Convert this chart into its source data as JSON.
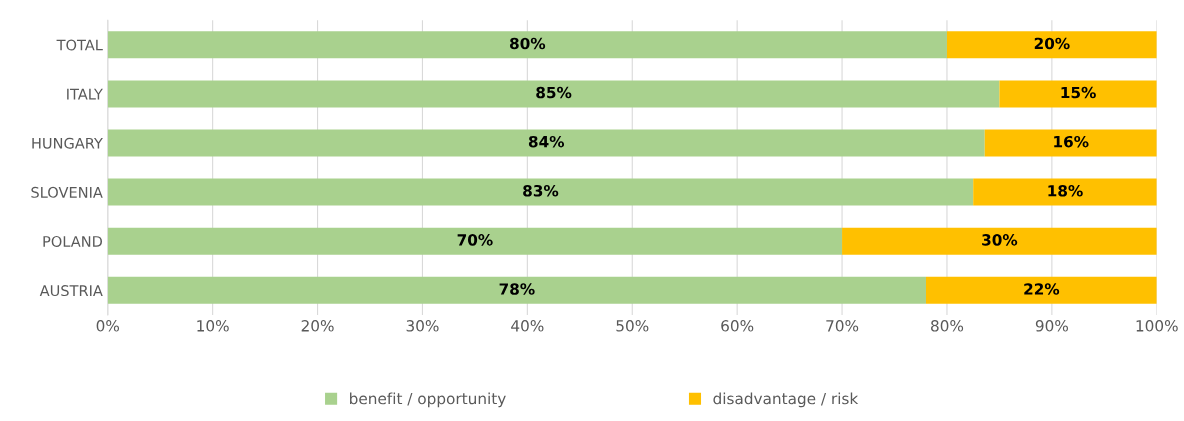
{
  "chart_data": {
    "type": "bar",
    "orientation": "horizontal",
    "stacked": true,
    "categories": [
      "TOTAL",
      "ITALY",
      "HUNGARY",
      "SLOVENIA",
      "POLAND",
      "AUSTRIA"
    ],
    "series": [
      {
        "name": "benefit / opportunity",
        "color": "#a9d18e",
        "values": [
          80,
          85,
          83.6,
          82.5,
          70,
          78
        ],
        "value_labels": [
          "80%",
          "85%",
          "84%",
          "83%",
          "70%",
          "78%"
        ]
      },
      {
        "name": "disadvantage / risk",
        "color": "#ffc000",
        "values": [
          20,
          15,
          16.4,
          17.5,
          30,
          22
        ],
        "value_labels": [
          "20%",
          "15%",
          "16%",
          "18%",
          "30%",
          "22%"
        ]
      }
    ],
    "xlim": [
      0,
      100
    ],
    "xticks": [
      {
        "value": 0,
        "label": "0%"
      },
      {
        "value": 10,
        "label": "10%"
      },
      {
        "value": 20,
        "label": "20%"
      },
      {
        "value": 30,
        "label": "30%"
      },
      {
        "value": 40,
        "label": "40%"
      },
      {
        "value": 50,
        "label": "50%"
      },
      {
        "value": 60,
        "label": "60%"
      },
      {
        "value": 70,
        "label": "70%"
      },
      {
        "value": 80,
        "label": "80%"
      },
      {
        "value": 90,
        "label": "90%"
      },
      {
        "value": 100,
        "label": "100%"
      }
    ],
    "grid": "x",
    "legend": "bottom"
  }
}
